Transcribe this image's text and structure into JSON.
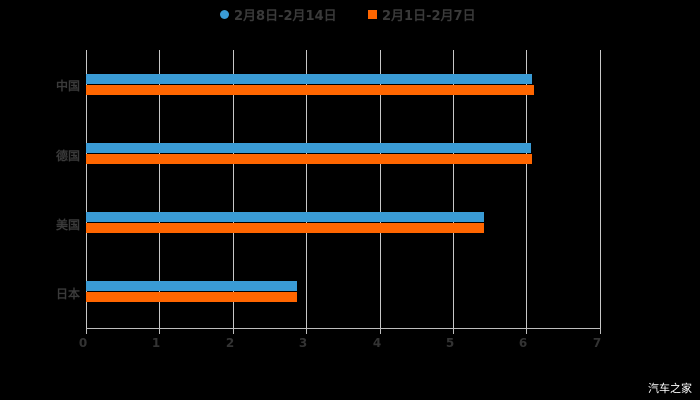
{
  "chart_data": {
    "type": "bar",
    "orientation": "horizontal",
    "title": "",
    "categories": [
      "中国",
      "德国",
      "美国",
      "日本"
    ],
    "series": [
      {
        "name": "2月8日-2月14日",
        "color": "#3A9BD5",
        "marker": "circle",
        "values": [
          6.08,
          6.06,
          5.42,
          2.87
        ]
      },
      {
        "name": "2月1日-2月7日",
        "color": "#FF6600",
        "marker": "square",
        "values": [
          6.1,
          6.08,
          5.42,
          2.87
        ]
      }
    ],
    "xlabel": "",
    "ylabel": "",
    "xlim": [
      0,
      7
    ],
    "xticks": [
      "0",
      "1",
      "2",
      "3",
      "4",
      "5",
      "6",
      "7"
    ],
    "grid": "vertical",
    "legend_position": "top"
  },
  "legend": {
    "items": [
      {
        "label": "2月8日-2月14日",
        "color": "#3A9BD5"
      },
      {
        "label": "2月1日-2月7日",
        "color": "#FF6600"
      }
    ]
  },
  "axis": {
    "ticks": [
      "0",
      "1",
      "2",
      "3",
      "4",
      "5",
      "6",
      "7"
    ]
  },
  "categories": [
    "中国",
    "德国",
    "美国",
    "日本"
  ],
  "watermark": "汽车之家"
}
